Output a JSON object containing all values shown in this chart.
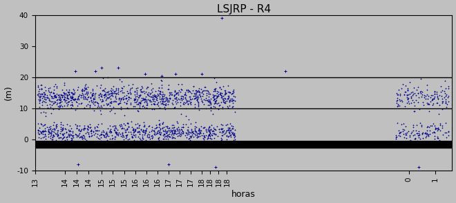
{
  "title": "LSJRP - R4",
  "xlabel": "horas",
  "ylabel": "(m)",
  "xlim": [
    13.0,
    25.5
  ],
  "ylim": [
    -10,
    40
  ],
  "yticks": [
    -10,
    0,
    10,
    20,
    30,
    40
  ],
  "xtick_positions": [
    13.0,
    13.9,
    14.25,
    14.6,
    15.0,
    15.33,
    15.67,
    16.0,
    16.33,
    16.67,
    17.0,
    17.33,
    17.67,
    18.0,
    18.25,
    18.5,
    18.75,
    24.2,
    25.0
  ],
  "xtick_labels": [
    "13",
    "14",
    "14",
    "14",
    "15",
    "15",
    "15",
    "16",
    "16",
    "16",
    "17",
    "17",
    "17",
    "18",
    "18",
    "18",
    "18",
    "0",
    "1"
  ],
  "hlines": [
    20,
    10
  ],
  "hline_color": "#000000",
  "scatter_color": "#00008B",
  "bg_color": "#C0C0C0",
  "fig_bg_color": "#C0C0C0",
  "black_band_y_center": -1.5,
  "black_band_height": 2.2,
  "marker_size": 3,
  "seed": 42,
  "n_upper": 1100,
  "n_lower": 900,
  "upper_mean": 13.5,
  "upper_std": 2.0,
  "lower_mean": 2.2,
  "lower_std": 1.5,
  "title_fontsize": 11,
  "axis_fontsize": 9,
  "tick_fontsize": 7.5
}
